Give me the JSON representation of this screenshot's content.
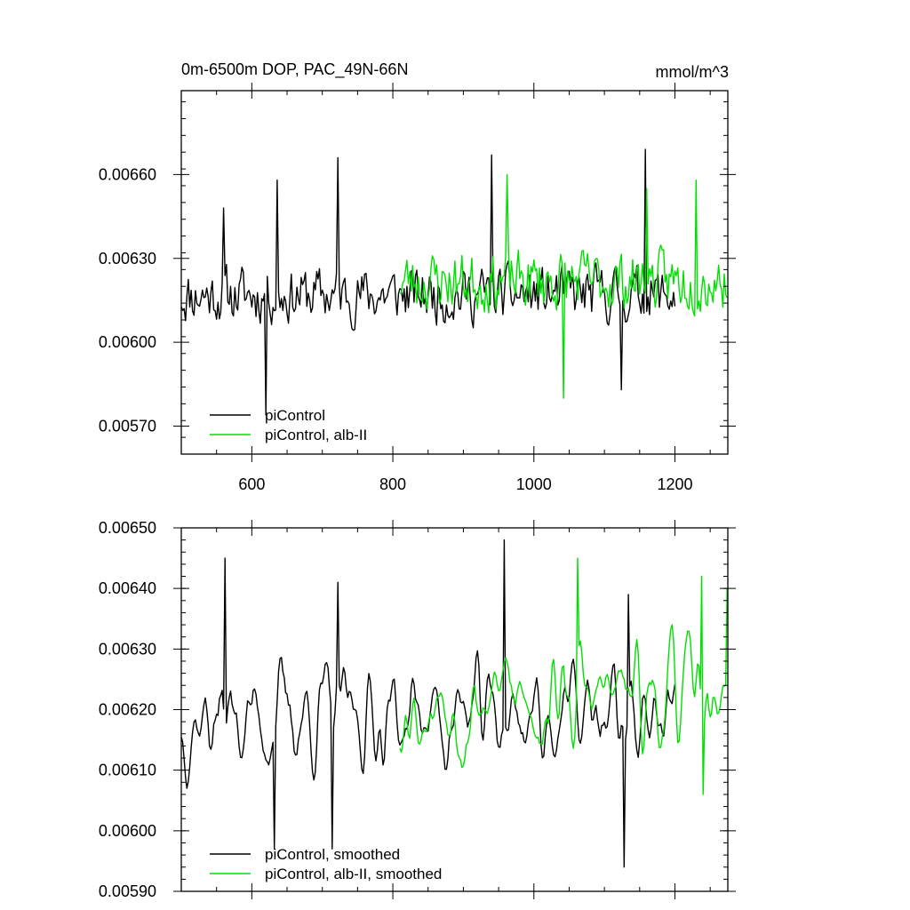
{
  "chart_data": [
    {
      "type": "line",
      "title": "0m-6500m DOP, PAC_49N-66N",
      "units": "mmol/m^3",
      "xlim": [
        500,
        1275
      ],
      "ylim": [
        0.0056,
        0.0069
      ],
      "xticks": [
        600,
        800,
        1000,
        1200
      ],
      "xtick_labels": [
        "600",
        "800",
        "1000",
        "1200"
      ],
      "yticks": [
        0.0057,
        0.006,
        0.0063,
        0.0066
      ],
      "ytick_labels": [
        "0.00570",
        "0.00600",
        "0.00630",
        "0.00660"
      ],
      "legend_position": "bottom-left",
      "series": [
        {
          "name": "piControl",
          "color": "#000000",
          "x_start": 500,
          "x_end": 1200,
          "mean": 0.00617,
          "amplitude": 0.00015,
          "seed": 11,
          "peaks": [
            [
              560,
              0.00648
            ],
            [
              620,
              0.00574
            ],
            [
              637,
              0.00658
            ],
            [
              722,
              0.00666
            ],
            [
              940,
              0.00667
            ],
            [
              1158,
              0.00669
            ],
            [
              1125,
              0.00583
            ]
          ]
        },
        {
          "name": "piControl, alb-II",
          "color": "#00e000",
          "x_start": 810,
          "x_end": 1275,
          "mean": 0.00622,
          "amplitude": 0.00016,
          "seed": 23,
          "peaks": [
            [
              962,
              0.0066
            ],
            [
              1043,
              0.0058
            ],
            [
              1160,
              0.00655
            ],
            [
              1230,
              0.00658
            ]
          ]
        }
      ]
    },
    {
      "type": "line",
      "title": "",
      "xlim": [
        500,
        1275
      ],
      "ylim": [
        0.0059,
        0.0065
      ],
      "xticks": [
        600,
        800,
        1000,
        1200
      ],
      "xtick_labels": [],
      "yticks": [
        0.0059,
        0.006,
        0.0061,
        0.0062,
        0.0063,
        0.0064,
        0.0065
      ],
      "ytick_labels": [
        "0.00590",
        "0.00600",
        "0.00610",
        "0.00620",
        "0.00630",
        "0.00640",
        "0.00650"
      ],
      "legend_position": "bottom-left",
      "series": [
        {
          "name": "piControl, smoothed",
          "color": "#000000",
          "x_start": 500,
          "x_end": 1200,
          "mean": 0.00619,
          "amplitude": 0.00012,
          "seed": 37,
          "peaks": [
            [
              562,
              0.00645
            ],
            [
              633,
              0.00597
            ],
            [
              722,
              0.00641
            ],
            [
              715,
              0.00597
            ],
            [
              958,
              0.00648
            ],
            [
              1128,
              0.00594
            ],
            [
              1135,
              0.00639
            ]
          ]
        },
        {
          "name": "piControl, alb-II, smoothed",
          "color": "#00e000",
          "x_start": 810,
          "x_end": 1275,
          "mean": 0.00622,
          "amplitude": 0.00012,
          "seed": 53,
          "peaks": [
            [
              1062,
              0.00645
            ],
            [
              1238,
              0.00642
            ],
            [
              1240,
              0.00606
            ],
            [
              1275,
              0.0064
            ]
          ]
        }
      ]
    }
  ]
}
